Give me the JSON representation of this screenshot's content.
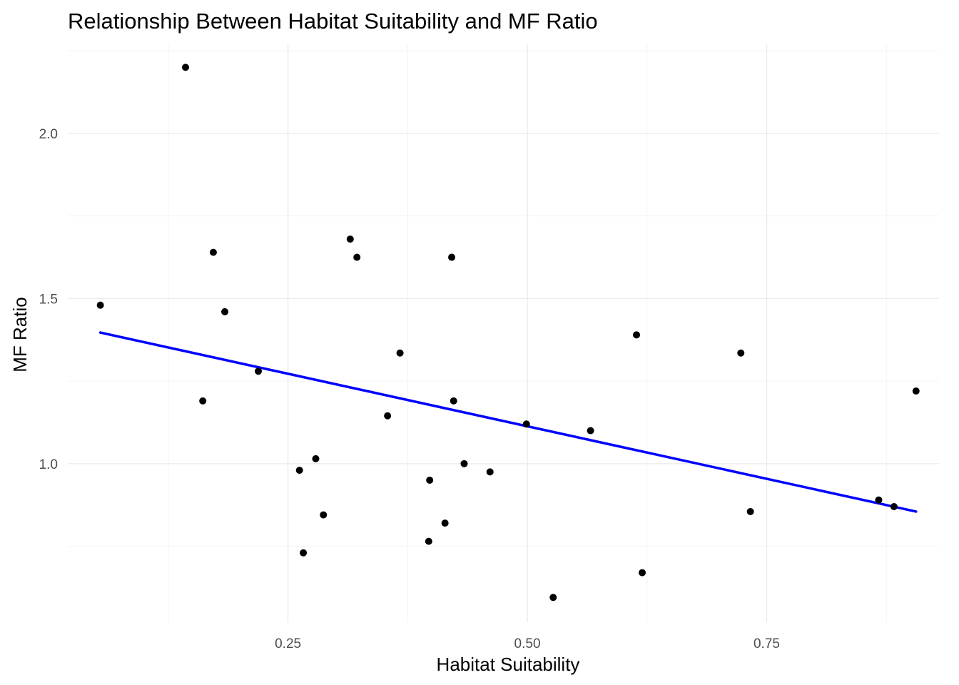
{
  "chart_data": {
    "type": "scatter",
    "title": "Relationship Between Habitat Suitability and MF Ratio",
    "xlabel": "Habitat Suitability",
    "ylabel": "MF Ratio",
    "xlim": [
      0.02,
      0.93
    ],
    "ylim": [
      0.52,
      2.27
    ],
    "x_ticks": [
      0.25,
      0.5,
      0.75
    ],
    "x_tick_labels": [
      "0.25",
      "0.50",
      "0.75"
    ],
    "y_ticks": [
      1.0,
      1.5,
      2.0
    ],
    "y_tick_labels": [
      "1.0",
      "1.5",
      "2.0"
    ],
    "grid": true,
    "points": {
      "x": [
        0.054,
        0.143,
        0.161,
        0.172,
        0.184,
        0.219,
        0.262,
        0.266,
        0.279,
        0.287,
        0.315,
        0.322,
        0.354,
        0.367,
        0.397,
        0.398,
        0.414,
        0.421,
        0.423,
        0.434,
        0.461,
        0.499,
        0.527,
        0.566,
        0.614,
        0.62,
        0.723,
        0.733,
        0.867,
        0.883,
        0.906
      ],
      "y": [
        1.48,
        2.2,
        1.19,
        1.64,
        1.46,
        1.28,
        0.98,
        0.73,
        1.015,
        0.845,
        1.68,
        1.625,
        1.145,
        1.335,
        0.765,
        0.95,
        0.82,
        1.625,
        1.19,
        1.0,
        0.975,
        1.12,
        0.595,
        1.1,
        1.39,
        0.67,
        1.335,
        0.855,
        0.89,
        0.87,
        1.22
      ]
    },
    "trend_line": {
      "type": "linear",
      "color": "#0000ff",
      "x": [
        0.054,
        0.906
      ],
      "y": [
        1.397,
        0.855
      ]
    }
  }
}
